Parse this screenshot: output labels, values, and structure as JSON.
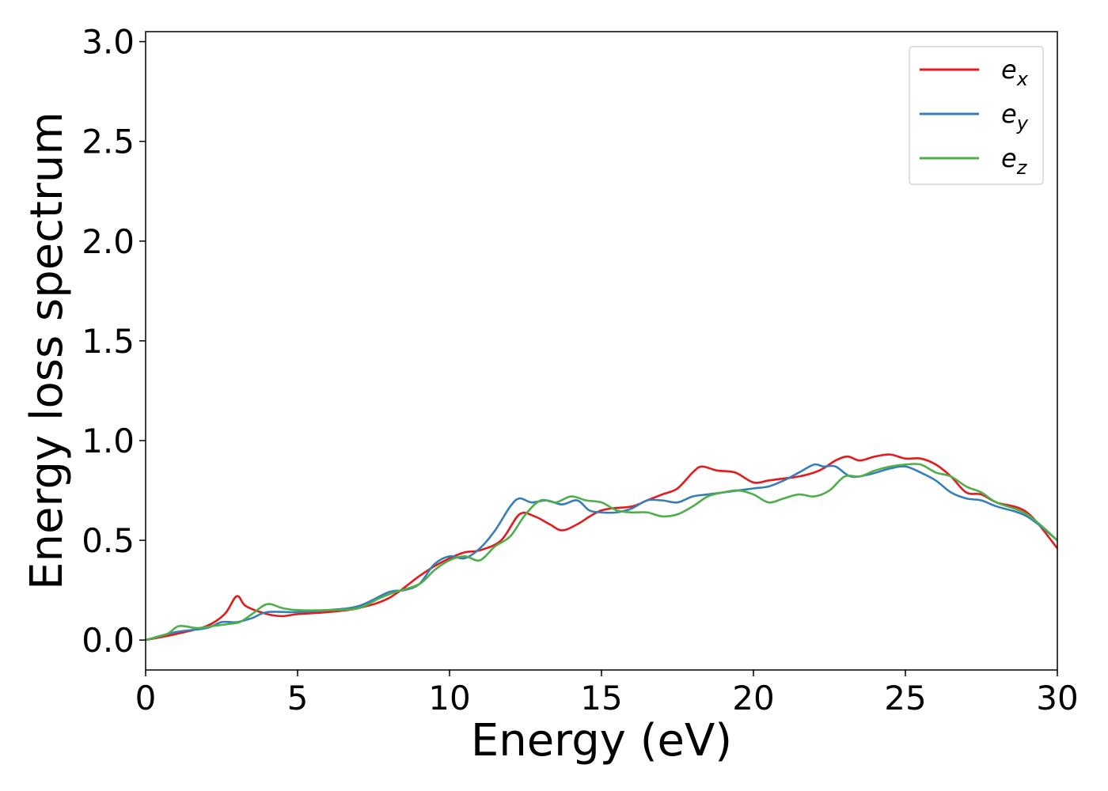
{
  "chart_data": {
    "type": "line",
    "title": "",
    "xlabel": "Energy (eV)",
    "ylabel": "Energy loss spectrum",
    "xlim": [
      0,
      30
    ],
    "ylim": [
      -0.15,
      3.05
    ],
    "xticks": [
      0,
      5,
      10,
      15,
      20,
      25,
      30
    ],
    "xtick_labels": [
      "0",
      "5",
      "10",
      "15",
      "20",
      "25",
      "30"
    ],
    "yticks": [
      0.0,
      0.5,
      1.0,
      1.5,
      2.0,
      2.5,
      3.0
    ],
    "ytick_labels": [
      "0.0",
      "0.5",
      "1.0",
      "1.5",
      "2.0",
      "2.5",
      "3.0"
    ],
    "grid": false,
    "legend_position": "top-right",
    "series": [
      {
        "name": "e_x",
        "color": "#e41a1c",
        "x": [
          0,
          1,
          2,
          2.6,
          3.0,
          3.3,
          4,
          4.5,
          5,
          6,
          7,
          8,
          9,
          9.5,
          10,
          10.5,
          11,
          11.7,
          12.3,
          12.8,
          13.3,
          13.7,
          14.2,
          15,
          16,
          16.5,
          17,
          17.5,
          18,
          18.3,
          18.8,
          19.4,
          20,
          20.5,
          21,
          21.5,
          22,
          22.3,
          22.7,
          23.1,
          23.5,
          24,
          24.5,
          25,
          25.5,
          26,
          26.5,
          27,
          27.5,
          28,
          29,
          30
        ],
        "y": [
          0.0,
          0.03,
          0.07,
          0.13,
          0.22,
          0.17,
          0.13,
          0.12,
          0.13,
          0.14,
          0.16,
          0.21,
          0.32,
          0.37,
          0.41,
          0.44,
          0.45,
          0.5,
          0.63,
          0.62,
          0.58,
          0.55,
          0.58,
          0.65,
          0.67,
          0.7,
          0.73,
          0.76,
          0.84,
          0.87,
          0.85,
          0.84,
          0.79,
          0.8,
          0.81,
          0.82,
          0.84,
          0.86,
          0.9,
          0.92,
          0.9,
          0.92,
          0.93,
          0.91,
          0.91,
          0.88,
          0.82,
          0.74,
          0.73,
          0.69,
          0.64,
          0.46
        ]
      },
      {
        "name": "e_y",
        "color": "#377eb8",
        "x": [
          0,
          1,
          2,
          2.5,
          3.0,
          3.5,
          4,
          5,
          6,
          7,
          8,
          8.5,
          9,
          9.5,
          10,
          10.5,
          11,
          11.5,
          12,
          12.3,
          12.7,
          13.2,
          13.7,
          14.2,
          14.6,
          15,
          15.5,
          16,
          16.5,
          17,
          17.5,
          18,
          18.5,
          19,
          19.5,
          20,
          20.5,
          21,
          21.5,
          22,
          22.3,
          22.7,
          23.2,
          23.8,
          24.5,
          25,
          25.5,
          26,
          26.5,
          27,
          27.5,
          28,
          29,
          30
        ],
        "y": [
          0.0,
          0.04,
          0.06,
          0.09,
          0.09,
          0.11,
          0.14,
          0.14,
          0.15,
          0.17,
          0.24,
          0.25,
          0.28,
          0.38,
          0.42,
          0.41,
          0.46,
          0.55,
          0.67,
          0.71,
          0.69,
          0.7,
          0.68,
          0.7,
          0.65,
          0.64,
          0.64,
          0.66,
          0.7,
          0.7,
          0.69,
          0.72,
          0.73,
          0.74,
          0.75,
          0.76,
          0.77,
          0.8,
          0.84,
          0.88,
          0.87,
          0.87,
          0.82,
          0.83,
          0.86,
          0.87,
          0.84,
          0.8,
          0.74,
          0.71,
          0.7,
          0.67,
          0.62,
          0.5
        ]
      },
      {
        "name": "e_z",
        "color": "#4daf4a",
        "x": [
          0,
          0.7,
          1.1,
          1.7,
          2.2,
          2.7,
          3.1,
          3.5,
          4,
          4.5,
          5,
          6,
          7,
          7.7,
          8.2,
          9,
          9.5,
          10,
          10.5,
          11,
          11.5,
          12,
          12.5,
          13,
          13.5,
          14,
          14.5,
          15,
          15.5,
          16,
          16.5,
          17,
          17.5,
          18,
          18.5,
          19,
          19.5,
          20,
          20.5,
          21,
          21.5,
          22,
          22.5,
          23,
          23.5,
          24,
          24.5,
          25,
          25.5,
          26,
          26.5,
          27,
          27.5,
          28,
          29,
          30
        ],
        "y": [
          0.0,
          0.03,
          0.07,
          0.06,
          0.07,
          0.08,
          0.09,
          0.13,
          0.18,
          0.16,
          0.15,
          0.15,
          0.16,
          0.21,
          0.24,
          0.28,
          0.35,
          0.4,
          0.42,
          0.4,
          0.47,
          0.52,
          0.63,
          0.7,
          0.69,
          0.72,
          0.7,
          0.69,
          0.65,
          0.64,
          0.64,
          0.62,
          0.63,
          0.67,
          0.72,
          0.74,
          0.75,
          0.73,
          0.69,
          0.71,
          0.73,
          0.72,
          0.75,
          0.82,
          0.82,
          0.85,
          0.87,
          0.88,
          0.88,
          0.84,
          0.82,
          0.77,
          0.74,
          0.69,
          0.63,
          0.5
        ]
      }
    ]
  },
  "legend": {
    "items": [
      {
        "base": "e",
        "sub": "x",
        "color": "#e41a1c"
      },
      {
        "base": "e",
        "sub": "y",
        "color": "#377eb8"
      },
      {
        "base": "e",
        "sub": "z",
        "color": "#4daf4a"
      }
    ]
  }
}
